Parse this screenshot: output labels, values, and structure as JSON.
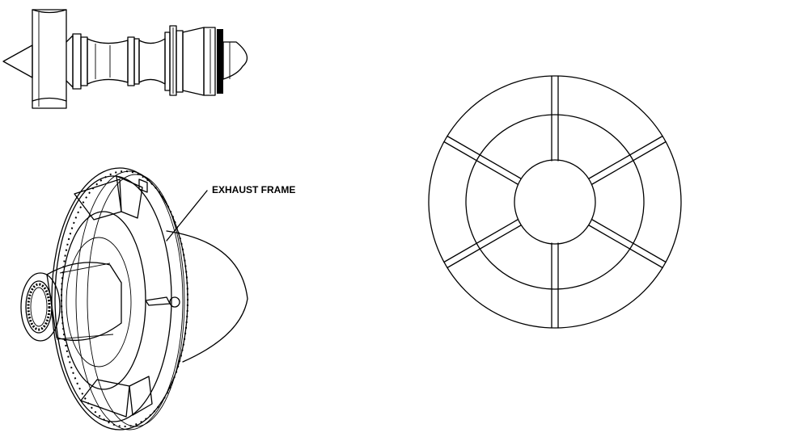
{
  "callout": {
    "exhaust_frame_label": "EXHAUST FRAME"
  }
}
